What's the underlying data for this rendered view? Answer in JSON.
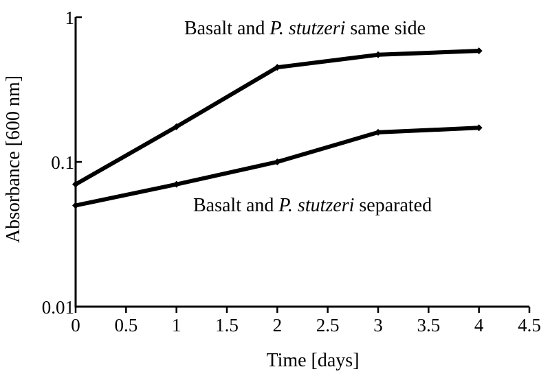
{
  "chart_data": {
    "type": "line",
    "title": "",
    "xlabel": "Time [days]",
    "ylabel": "Absorbance [600 nm]",
    "x_scale": "linear",
    "y_scale": "log",
    "xlim": [
      0,
      4.5
    ],
    "ylim": [
      0.01,
      1
    ],
    "x_ticks": [
      0,
      0.5,
      1,
      1.5,
      2,
      2.5,
      3,
      3.5,
      4,
      4.5
    ],
    "x_tick_labels": [
      "0",
      "0.5",
      "1",
      "1.5",
      "2",
      "2.5",
      "3",
      "3.5",
      "4",
      "4.5"
    ],
    "y_ticks": [
      0.01,
      0.1,
      1
    ],
    "y_tick_labels": [
      "0.01",
      "0.1",
      "1"
    ],
    "grid": false,
    "legend": "none",
    "line_color": "#000000",
    "x": [
      0,
      1,
      2,
      3,
      4
    ],
    "series": [
      {
        "values": [
          0.07,
          0.175,
          0.45,
          0.55,
          0.585
        ],
        "annotation": {
          "before": "Basalt and ",
          "italic": "P. stutzeri",
          "after": " same side"
        }
      },
      {
        "values": [
          0.05,
          0.07,
          0.1,
          0.16,
          0.172
        ],
        "annotation": {
          "before": "Basalt and ",
          "italic": "P. stutzeri",
          "after": " separated"
        }
      }
    ]
  }
}
